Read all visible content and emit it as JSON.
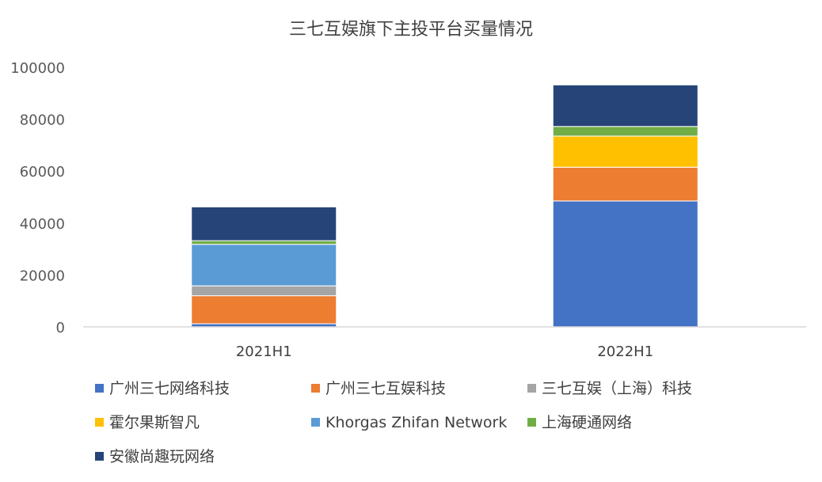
{
  "chart_data": {
    "type": "bar",
    "stacked": true,
    "title": "三七互娱旗下主投平台买量情况",
    "xlabel": "",
    "ylabel": "",
    "ylim": [
      0,
      100000
    ],
    "yticks": [
      0,
      20000,
      40000,
      60000,
      80000,
      100000
    ],
    "ytick_labels": [
      "0",
      "20000",
      "40000",
      "60000",
      "80000",
      "100000"
    ],
    "categories": [
      "2021H1",
      "2022H1"
    ],
    "grid": false,
    "legend_position": "bottom",
    "series": [
      {
        "name": "广州三七网络科技",
        "color": "#4472C4",
        "values": [
          1200,
          48500
        ]
      },
      {
        "name": "广州三七互娱科技",
        "color": "#ED7D31",
        "values": [
          10800,
          13000
        ]
      },
      {
        "name": "三七互娱（上海）科技",
        "color": "#A5A5A5",
        "values": [
          3800,
          0
        ]
      },
      {
        "name": "霍尔果斯智凡",
        "color": "#FFC000",
        "values": [
          0,
          12000
        ]
      },
      {
        "name": "Khorgas Zhifan Network",
        "color": "#5B9BD5",
        "values": [
          16000,
          0
        ]
      },
      {
        "name": "上海硬通网络",
        "color": "#70AD47",
        "values": [
          1400,
          3700
        ]
      },
      {
        "name": "安徽尚趣玩网络",
        "color": "#264478",
        "values": [
          13000,
          16000
        ]
      }
    ]
  }
}
